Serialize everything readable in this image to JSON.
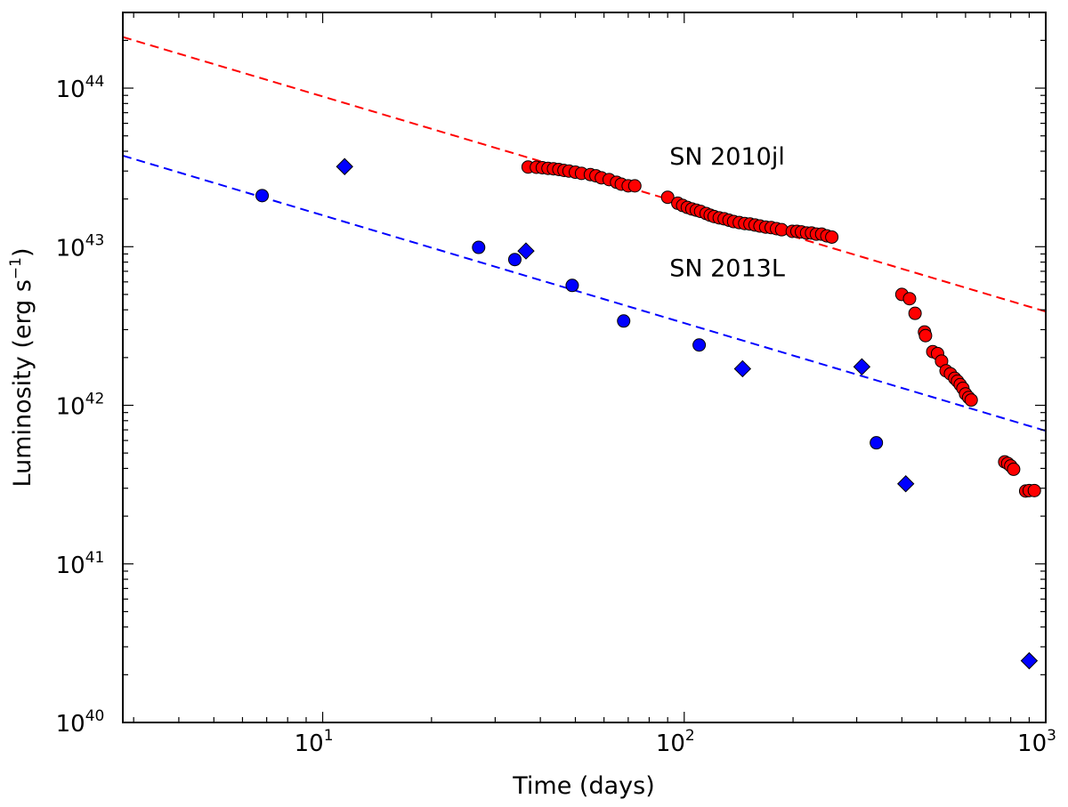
{
  "chart_data": {
    "type": "scatter",
    "xscale": "log",
    "yscale": "log",
    "xlim": [
      2.8,
      1000
    ],
    "ylim": [
      1e+40,
      3e+44
    ],
    "xlabel": "Time (days)",
    "ylabel_text": "Luminosity (erg s",
    "ylabel_exp": "−1",
    "ylabel_close": ")",
    "x_ticks": [
      {
        "value": 10,
        "base": "10",
        "exp": "1"
      },
      {
        "value": 100,
        "base": "10",
        "exp": "2"
      },
      {
        "value": 1000,
        "base": "10",
        "exp": "3"
      }
    ],
    "y_ticks": [
      {
        "value": 1e+40,
        "base": "10",
        "exp": "40"
      },
      {
        "value": 1e+41,
        "base": "10",
        "exp": "41"
      },
      {
        "value": 1e+42,
        "base": "10",
        "exp": "42"
      },
      {
        "value": 1e+43,
        "base": "10",
        "exp": "43"
      },
      {
        "value": 1e+44,
        "base": "10",
        "exp": "44"
      }
    ],
    "annotations": [
      {
        "text": "SN 2010jl",
        "x": 90,
        "y": 3.3e+43
      },
      {
        "text": "SN 2013L",
        "x": 90,
        "y": 6.5e+42
      }
    ],
    "series": [
      {
        "name": "SN 2010jl",
        "marker": "circle",
        "color": "#ff0000",
        "x": [
          37,
          39,
          40.5,
          42,
          43.5,
          45,
          46.5,
          48,
          50,
          52,
          55,
          57,
          59,
          62,
          65,
          67,
          70,
          73,
          90,
          96,
          99,
          102,
          105,
          108,
          111,
          115,
          118,
          121,
          125,
          129,
          133,
          137,
          142,
          147,
          152,
          157,
          162,
          168,
          174,
          180,
          186,
          199,
          205,
          211,
          218,
          225,
          232,
          240,
          248,
          256,
          400,
          420,
          435,
          462,
          465,
          487,
          502,
          515,
          530,
          545,
          560,
          570,
          580,
          590,
          600,
          612,
          622,
          770,
          785,
          800,
          815,
          880,
          900,
          930
        ],
        "y": [
          3.18e+43,
          3.17e+43,
          3.15e+43,
          3.12e+43,
          3.1e+43,
          3.07e+43,
          3.03e+43,
          3e+43,
          2.95e+43,
          2.9e+43,
          2.85e+43,
          2.8e+43,
          2.72e+43,
          2.65e+43,
          2.55e+43,
          2.48e+43,
          2.42e+43,
          2.42e+43,
          2.05e+43,
          1.88e+43,
          1.82e+43,
          1.77e+43,
          1.73e+43,
          1.7e+43,
          1.67e+43,
          1.62e+43,
          1.58e+43,
          1.55e+43,
          1.52e+43,
          1.5e+43,
          1.47e+43,
          1.44e+43,
          1.42e+43,
          1.4e+43,
          1.39e+43,
          1.37e+43,
          1.35e+43,
          1.33e+43,
          1.32e+43,
          1.3e+43,
          1.28e+43,
          1.25e+43,
          1.25e+43,
          1.24e+43,
          1.22e+43,
          1.22e+43,
          1.2e+43,
          1.2e+43,
          1.17e+43,
          1.15e+43,
          5e+42,
          4.7e+42,
          3.8e+42,
          2.9e+42,
          2.75e+42,
          2.18e+42,
          2.12e+42,
          1.9e+42,
          1.65e+42,
          1.58e+42,
          1.48e+42,
          1.42e+42,
          1.35e+42,
          1.28e+42,
          1.18e+42,
          1.12e+42,
          1.08e+42,
          4.4e+41,
          4.3e+41,
          4.15e+41,
          3.95e+41,
          2.88e+41,
          2.9e+41,
          2.9e+41
        ]
      },
      {
        "name": "SN 2013L",
        "marker": "circle",
        "color": "#0000ff",
        "x": [
          6.8,
          27,
          34,
          49,
          68,
          110,
          340
        ],
        "y": [
          2.1e+43,
          9.9e+42,
          8.3e+42,
          5.7e+42,
          3.4e+42,
          2.4e+42,
          5.8e+41
        ]
      },
      {
        "name": "SN 2013L",
        "marker": "diamond",
        "color": "#0000ff",
        "x": [
          11.5,
          36.5,
          145,
          310,
          410,
          900
        ],
        "y": [
          3.2e+43,
          9.4e+42,
          1.7e+42,
          1.75e+42,
          3.2e+41,
          2.45e+40
        ]
      }
    ],
    "fit_lines": [
      {
        "name": "SN 2010jl",
        "style": "dashed",
        "color": "#ff0000",
        "x": [
          2.8,
          1000
        ],
        "y": [
          2.1e+44,
          3.9e+42
        ]
      },
      {
        "name": "SN 2013L",
        "style": "dashed",
        "color": "#0000ff",
        "x": [
          2.8,
          1000
        ],
        "y": [
          3.75e+43,
          6.9e+41
        ]
      }
    ]
  }
}
